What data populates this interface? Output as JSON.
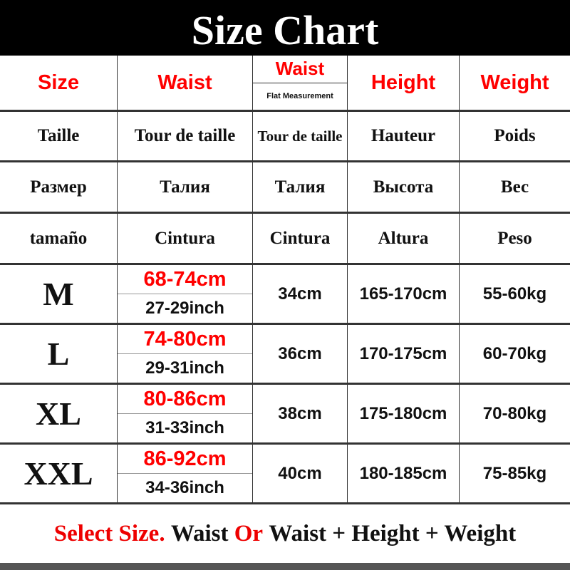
{
  "title": "Size Chart",
  "headers": {
    "size": "Size",
    "waist": "Waist",
    "waist_flat": "Waist",
    "flat_note": "Flat Measurement",
    "height": "Height",
    "weight": "Weight"
  },
  "translations": [
    [
      "Taille",
      "Tour de taille",
      "Tour de taille",
      "Hauteur",
      "Poids"
    ],
    [
      "Размер",
      "Талия",
      "Талия",
      "Высота",
      "Вес"
    ],
    [
      "tamaño",
      "Cintura",
      "Cintura",
      "Altura",
      "Peso"
    ]
  ],
  "rows": [
    {
      "size": "M",
      "waist_cm": "68-74cm",
      "waist_inch": "27-29inch",
      "flat": "34cm",
      "height": "165-170cm",
      "weight": "55-60kg"
    },
    {
      "size": "L",
      "waist_cm": "74-80cm",
      "waist_inch": "29-31inch",
      "flat": "36cm",
      "height": "170-175cm",
      "weight": "60-70kg"
    },
    {
      "size": "XL",
      "waist_cm": "80-86cm",
      "waist_inch": "31-33inch",
      "flat": "38cm",
      "height": "175-180cm",
      "weight": "70-80kg"
    },
    {
      "size": "XXL",
      "waist_cm": "86-92cm",
      "waist_inch": "34-36inch",
      "flat": "40cm",
      "height": "180-185cm",
      "weight": "75-85kg"
    }
  ],
  "footer": {
    "part1": "Select Size.",
    "part2": "Waist",
    "part3": "Or",
    "part4": "Waist + Height + Weight"
  },
  "colors": {
    "accent": "#ff0000",
    "title_bg": "#000000"
  }
}
